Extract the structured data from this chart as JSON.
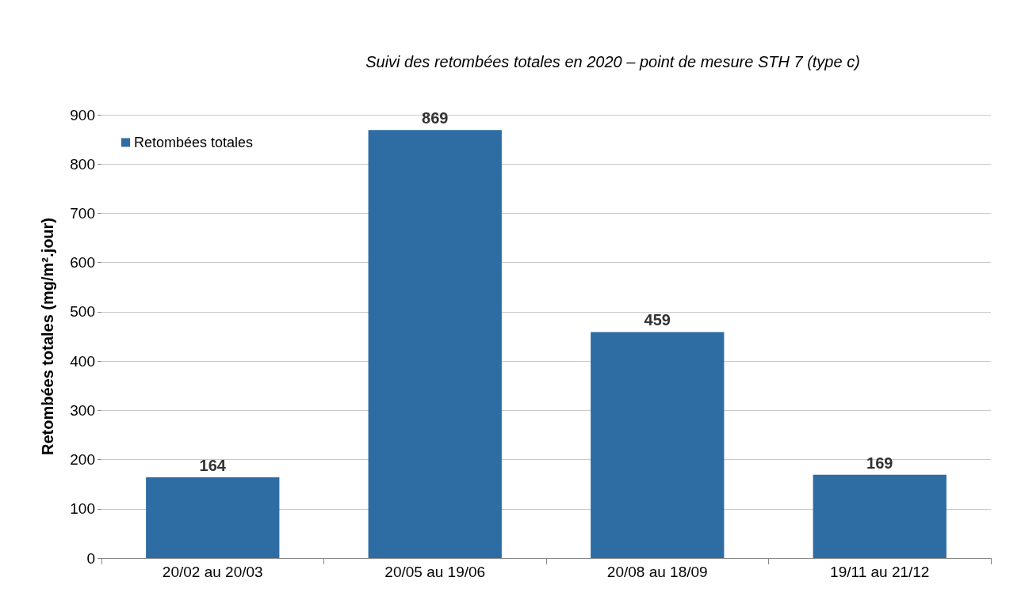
{
  "chart_data": {
    "type": "bar",
    "title": "Suivi des retombées totales en 2020 – point de mesure STH 7 (type c)",
    "ylabel": "Retombées totales (mg/m².jour)",
    "categories": [
      "20/02 au 20/03",
      "20/05 au 19/06",
      "20/08 au 18/09",
      "19/11 au 21/12"
    ],
    "series": [
      {
        "name": "Retombées totales",
        "color": "#2e6ca4",
        "values": [
          164,
          869,
          459,
          169
        ]
      }
    ],
    "ylim": [
      0,
      900
    ],
    "yticks": [
      0,
      100,
      200,
      300,
      400,
      500,
      600,
      700,
      800,
      900
    ],
    "grid": "y",
    "legend": "top left",
    "data_labels": true
  }
}
